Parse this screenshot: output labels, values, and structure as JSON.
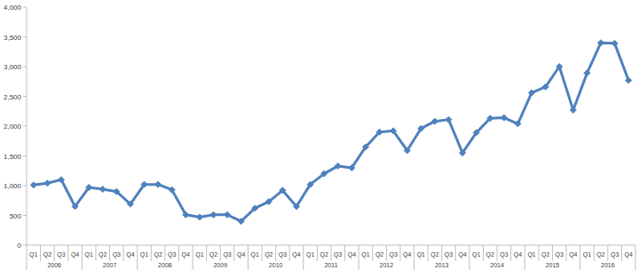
{
  "chart_data": {
    "type": "line",
    "categories": [
      "Q1",
      "Q2",
      "Q3",
      "Q4",
      "Q1",
      "Q2",
      "Q3",
      "Q4",
      "Q1",
      "Q2",
      "Q3",
      "Q4",
      "Q1",
      "Q2",
      "Q3",
      "Q4",
      "Q1",
      "Q2",
      "Q3",
      "Q4",
      "Q1",
      "Q2",
      "Q3",
      "Q4",
      "Q1",
      "Q2",
      "Q3",
      "Q4",
      "Q1",
      "Q2",
      "Q3",
      "Q4",
      "Q1",
      "Q2",
      "Q3",
      "Q4",
      "Q1",
      "Q2",
      "Q3",
      "Q4",
      "Q1",
      "Q2",
      "Q3",
      "Q4"
    ],
    "category_groups": [
      "2006",
      "2007",
      "2008",
      "2009",
      "2010",
      "2011",
      "2012",
      "2013",
      "2014",
      "2015",
      "2016"
    ],
    "values": [
      1010,
      1040,
      1100,
      650,
      970,
      940,
      900,
      690,
      1020,
      1020,
      930,
      510,
      470,
      510,
      510,
      400,
      620,
      730,
      920,
      650,
      1020,
      1200,
      1330,
      1300,
      1650,
      1900,
      1920,
      1590,
      1960,
      2080,
      2110,
      1550,
      1890,
      2130,
      2140,
      2040,
      2560,
      2660,
      3000,
      2270,
      2890,
      3400,
      3390,
      2770
    ],
    "color": "#4f81bd",
    "marker": "diamond",
    "ylim": [
      0,
      4000
    ],
    "yticks": [
      0,
      500,
      {
        "value": 1000,
        "label": "1,000"
      },
      {
        "value": 1500,
        "label": "1,500"
      },
      {
        "value": 2000,
        "label": "2,000"
      },
      {
        "value": 2500,
        "label": "2,500"
      },
      {
        "value": 3000,
        "label": "3,000"
      },
      {
        "value": 3500,
        "label": "3,500"
      },
      {
        "value": 4000,
        "label": "4,000"
      }
    ],
    "grid": false
  }
}
